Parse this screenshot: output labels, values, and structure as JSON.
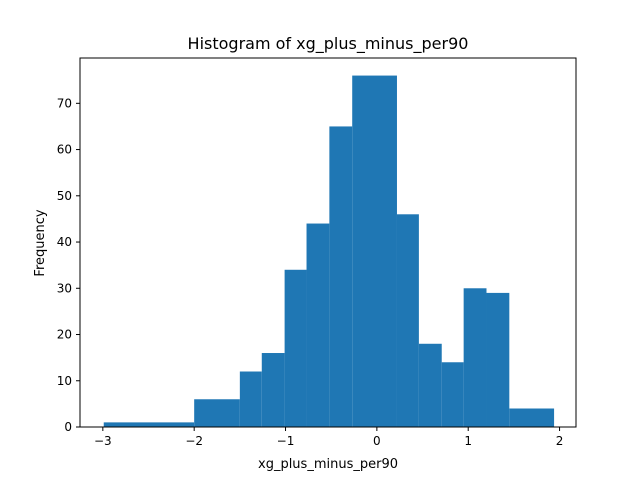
{
  "chart_data": {
    "type": "bar",
    "title": "Histogram of xg_plus_minus_per90",
    "xlabel": "xg_plus_minus_per90",
    "ylabel": "Frequency",
    "xlim": [
      -3.25,
      2.18
    ],
    "ylim": [
      0,
      79.8
    ],
    "xticks": [
      -3,
      -2,
      -1,
      0,
      1,
      2
    ],
    "xtick_labels": [
      "−3",
      "−2",
      "−1",
      "0",
      "1",
      "2"
    ],
    "yticks": [
      0,
      10,
      20,
      30,
      40,
      50,
      60,
      70
    ],
    "ytick_labels": [
      "0",
      "10",
      "20",
      "30",
      "40",
      "50",
      "60",
      "70"
    ],
    "bins": [
      {
        "x0": -2.99,
        "x1": -2.0,
        "count": 1
      },
      {
        "x0": -2.0,
        "x1": -1.5,
        "count": 6
      },
      {
        "x0": -1.5,
        "x1": -1.26,
        "count": 12
      },
      {
        "x0": -1.26,
        "x1": -1.01,
        "count": 16
      },
      {
        "x0": -1.01,
        "x1": -0.77,
        "count": 34
      },
      {
        "x0": -0.77,
        "x1": -0.52,
        "count": 44
      },
      {
        "x0": -0.52,
        "x1": -0.27,
        "count": 65
      },
      {
        "x0": -0.27,
        "x1": 0.22,
        "count": 76
      },
      {
        "x0": 0.22,
        "x1": 0.46,
        "count": 46
      },
      {
        "x0": 0.46,
        "x1": 0.71,
        "count": 18
      },
      {
        "x0": 0.71,
        "x1": 0.95,
        "count": 14
      },
      {
        "x0": 0.95,
        "x1": 1.2,
        "count": 30
      },
      {
        "x0": 1.2,
        "x1": 1.45,
        "count": 29
      },
      {
        "x0": 1.45,
        "x1": 1.94,
        "count": 4
      }
    ],
    "grid": false,
    "legend": "none",
    "bar_color": "#1f77b4"
  }
}
